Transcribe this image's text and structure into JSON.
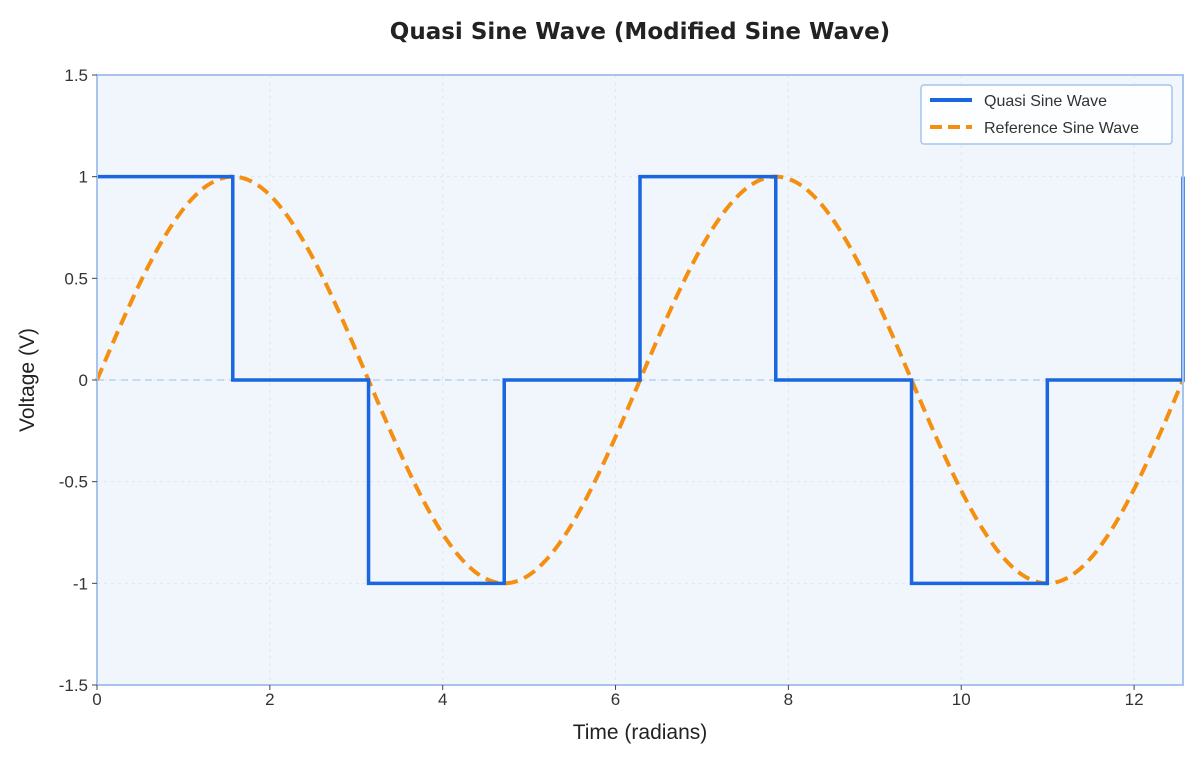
{
  "colors": {
    "quasi": "#1a66e0",
    "reference": "#f58f0f",
    "plot_bg": "#f0f6fc",
    "frame": "#a6c4ee",
    "zero_line": "#b8d0f0",
    "grid": "#dde6f2"
  },
  "chart_data": {
    "type": "line",
    "title": "Quasi Sine Wave (Modified Sine Wave)",
    "xlabel": "Time (radians)",
    "ylabel": "Voltage (V)",
    "xlim": [
      0,
      12.566
    ],
    "ylim": [
      -1.5,
      1.5
    ],
    "xticks": [
      0,
      2,
      4,
      6,
      8,
      10,
      12
    ],
    "xtick_labels": [
      "0",
      "2",
      "4",
      "6",
      "8",
      "10",
      "12"
    ],
    "yticks": [
      -1.5,
      -1,
      -0.5,
      0,
      0.5,
      1,
      1.5
    ],
    "ytick_labels": [
      "-1.5",
      "-1",
      "-0.5",
      "0",
      "0.5",
      "1",
      "1.5"
    ],
    "grid": true,
    "legend_position": "top-right",
    "series": [
      {
        "name": "Quasi Sine Wave",
        "style": "solid",
        "x": [
          0,
          1.571,
          1.571,
          3.142,
          3.142,
          4.712,
          4.712,
          6.283,
          6.283,
          7.854,
          7.854,
          9.425,
          9.425,
          10.996,
          10.996,
          12.566,
          12.566
        ],
        "y": [
          1,
          1,
          0,
          0,
          -1,
          -1,
          0,
          0,
          1,
          1,
          0,
          0,
          -1,
          -1,
          0,
          0,
          1
        ]
      },
      {
        "name": "Reference Sine Wave",
        "style": "dashed",
        "function": "sin(x)",
        "x_range": [
          0,
          12.566
        ]
      }
    ]
  }
}
